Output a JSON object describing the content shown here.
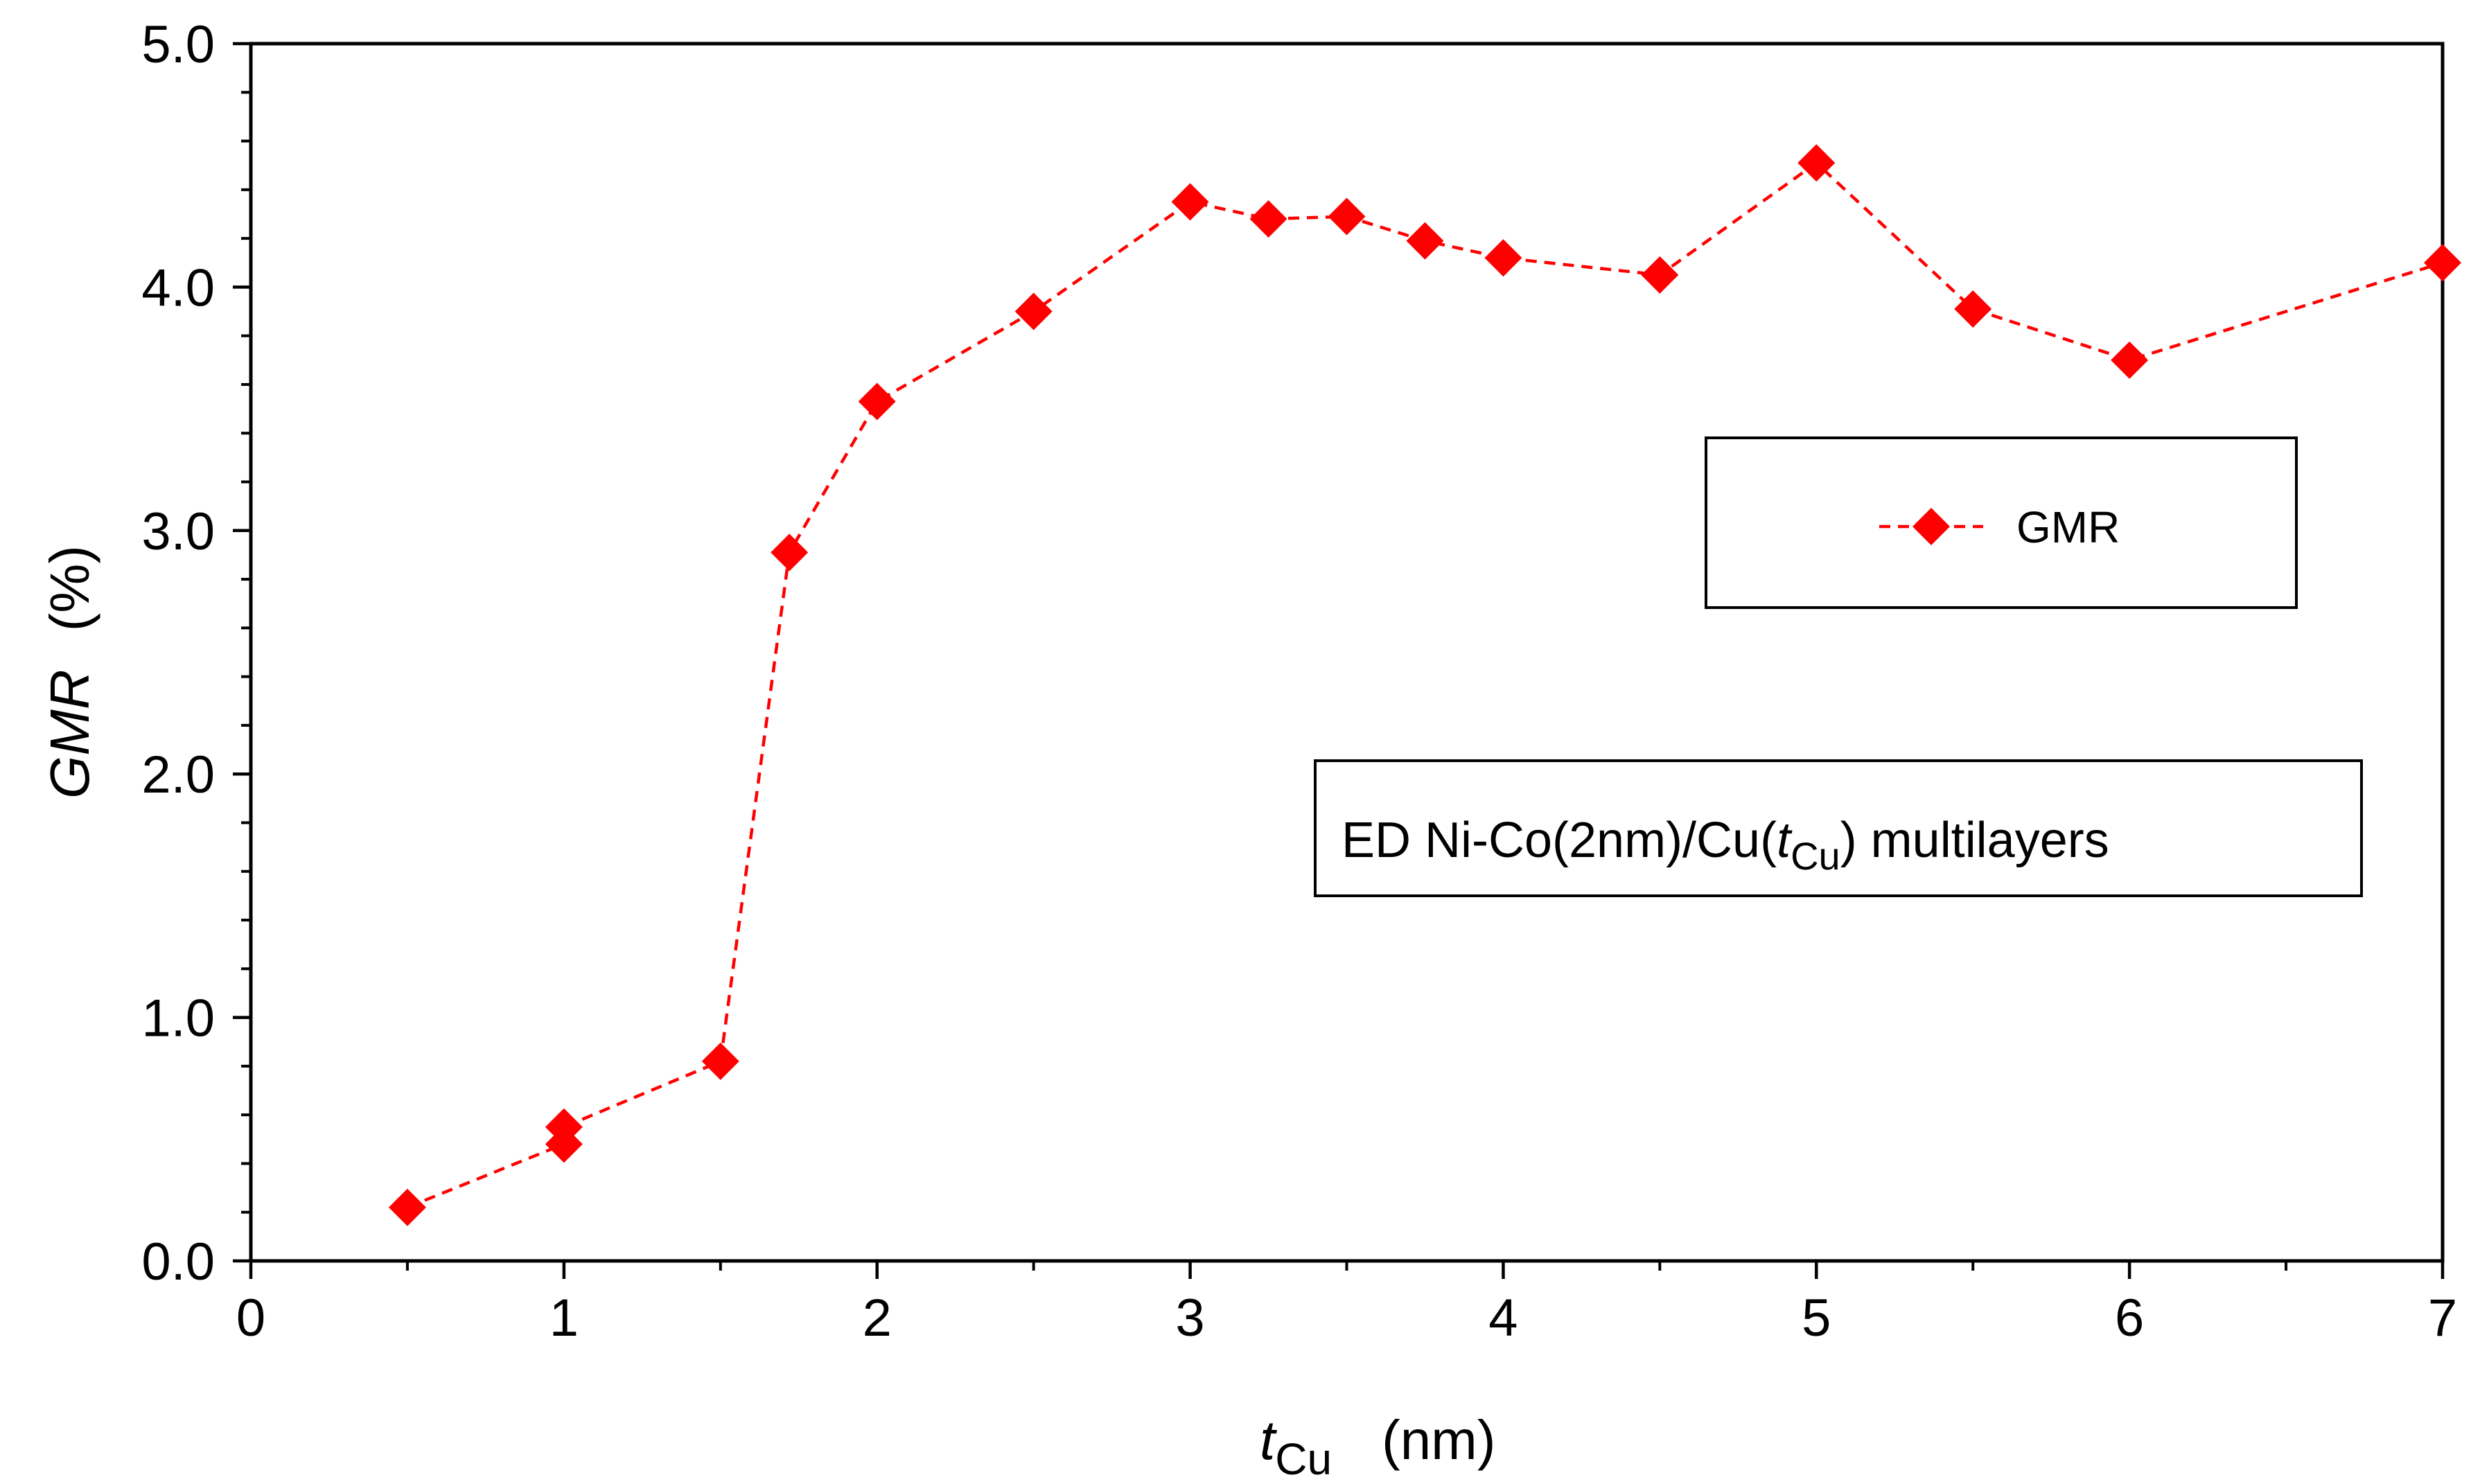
{
  "chart_data": {
    "type": "line",
    "xlabel_symbol": "t",
    "xlabel_subscript": "Cu",
    "xlabel_unit": "(nm)",
    "ylabel_symbol": "GMR",
    "ylabel_unit": "(%)",
    "xlim": [
      0,
      7
    ],
    "ylim": [
      0,
      5
    ],
    "x_major_ticks": [
      0,
      1,
      2,
      3,
      4,
      5,
      6,
      7
    ],
    "x_tick_labels": [
      "0",
      "1",
      "2",
      "3",
      "4",
      "5",
      "6",
      "7"
    ],
    "y_major_ticks": [
      0,
      1,
      2,
      3,
      4,
      5
    ],
    "y_tick_labels": [
      "0.0",
      "1.0",
      "2.0",
      "3.0",
      "4.0",
      "5.0"
    ],
    "x_minor_step": 0.5,
    "y_minor_step": 0.2,
    "grid": false,
    "legend": {
      "position": "right-middle",
      "entries": [
        "GMR"
      ]
    },
    "annotation": {
      "prefix": "ED Ni-Co(2nm)/Cu(",
      "italic": "t",
      "subscript": "Cu",
      "suffix": ") multilayers"
    },
    "series": [
      {
        "name": "GMR",
        "color": "#ff0000",
        "marker": "diamond",
        "line_style": "dashed",
        "x": [
          0.5,
          1.0,
          1.0,
          1.5,
          1.72,
          2.0,
          2.5,
          3.0,
          3.25,
          3.5,
          3.75,
          4.0,
          4.5,
          5.0,
          5.5,
          6.0,
          7.0
        ],
        "y": [
          0.22,
          0.48,
          0.55,
          0.82,
          2.91,
          3.53,
          3.9,
          4.35,
          4.28,
          4.29,
          4.19,
          4.12,
          4.05,
          4.51,
          3.91,
          3.7,
          4.1
        ]
      }
    ]
  }
}
